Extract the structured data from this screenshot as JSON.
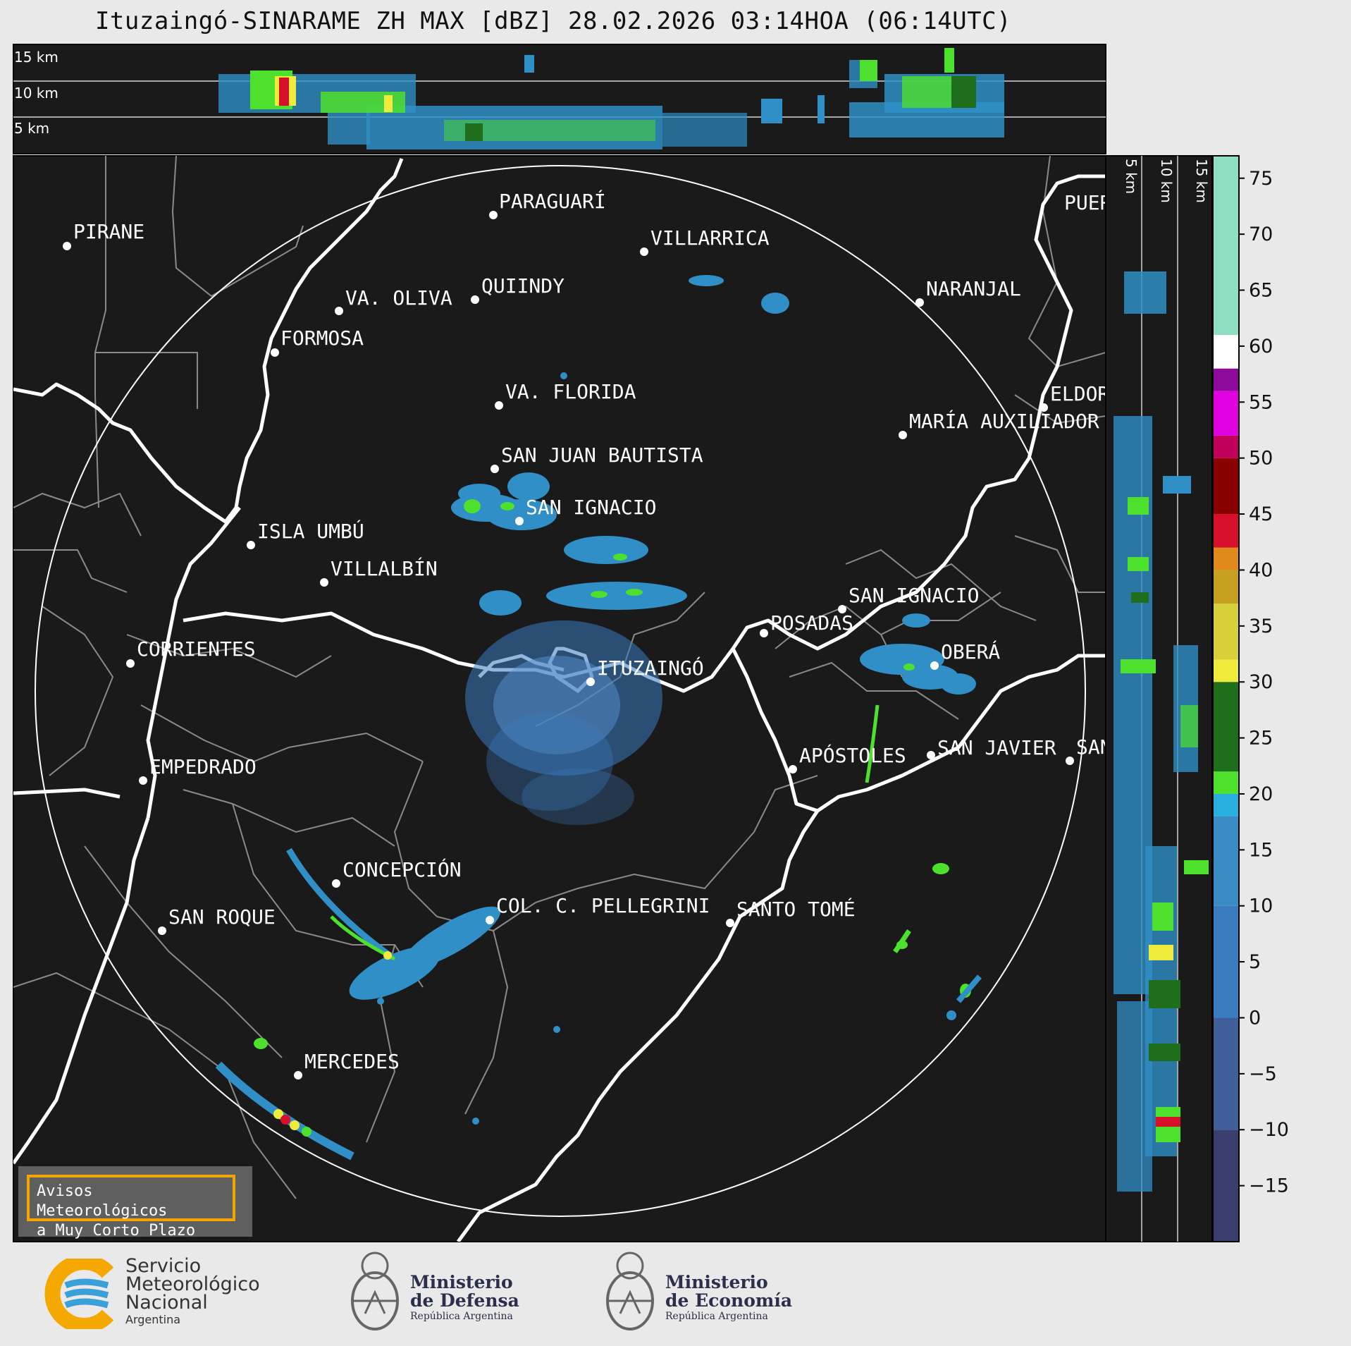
{
  "title": "Ituzaingó-SINARAME ZH MAX [dBZ] 28.02.2026 03:14HOA (06:14UTC)",
  "top_panel": {
    "heights": [
      "15 km",
      "10 km",
      "5 km"
    ]
  },
  "side_panel": {
    "heights": [
      "5 km",
      "10 km",
      "15 km"
    ]
  },
  "colorbar": {
    "ticks": [
      "75",
      "70",
      "65",
      "60",
      "55",
      "50",
      "45",
      "40",
      "35",
      "30",
      "25",
      "20",
      "15",
      "10",
      "5",
      "0",
      "−5",
      "−10",
      "−15"
    ],
    "tick_values": [
      75,
      70,
      65,
      60,
      55,
      50,
      45,
      40,
      35,
      30,
      25,
      20,
      15,
      10,
      5,
      0,
      -5,
      -10,
      -15
    ],
    "range": [
      -20,
      77
    ],
    "colors": {
      "low": "#3b3f6e",
      "mid_blue": "#3a8cc5",
      "cyan": "#29aee0",
      "green": "#4de02c",
      "dark_green": "#1f6e1c",
      "yellow": "#f0ea3a",
      "orange": "#e08a1c",
      "red": "#d80f2a",
      "dark_red": "#8a0000",
      "magenta": "#e000e0",
      "purple": "#8c0a9c",
      "white": "#ffffff",
      "teal": "#8fe0c2"
    }
  },
  "cities": [
    {
      "name": "PIRANE"
    },
    {
      "name": "PARAGUARÍ"
    },
    {
      "name": "VILLARRICA"
    },
    {
      "name": "VA. OLIVA"
    },
    {
      "name": "QUIINDY"
    },
    {
      "name": "NARANJAL"
    },
    {
      "name": "FORMOSA"
    },
    {
      "name": "VA. FLORIDA"
    },
    {
      "name": "ELDOR"
    },
    {
      "name": "MARÍA AUXILIADOR"
    },
    {
      "name": "SAN JUAN BAUTISTA"
    },
    {
      "name": "SAN IGNACIO"
    },
    {
      "name": "ISLA UMBÚ"
    },
    {
      "name": "VILLALBÍN"
    },
    {
      "name": "SAN IGNACIO"
    },
    {
      "name": "POSADAS"
    },
    {
      "name": "CORRIENTES"
    },
    {
      "name": "ITUZAINGÓ"
    },
    {
      "name": "OBERÁ"
    },
    {
      "name": "APÓSTOLES"
    },
    {
      "name": "SAN JAVIER"
    },
    {
      "name": "SAN"
    },
    {
      "name": "EMPEDRADO"
    },
    {
      "name": "CONCEPCIÓN"
    },
    {
      "name": "COL. C. PELLEGRINI"
    },
    {
      "name": "SANTO TOMÉ"
    },
    {
      "name": "SAN ROQUE"
    },
    {
      "name": "MERCEDES"
    },
    {
      "name": "PUER"
    }
  ],
  "warning_box": {
    "text": "Avisos Meteorológicos\na Muy Corto Plazo"
  },
  "logos": {
    "smn": {
      "line1": "Servicio",
      "line2": "Meteorológico",
      "line3": "Nacional",
      "line4": "Argentina"
    },
    "defensa": {
      "line1": "Ministerio",
      "line2": "de Defensa",
      "line3": "República Argentina"
    },
    "economia": {
      "line1": "Ministerio",
      "line2": "de Economía",
      "line3": "República Argentina"
    }
  }
}
